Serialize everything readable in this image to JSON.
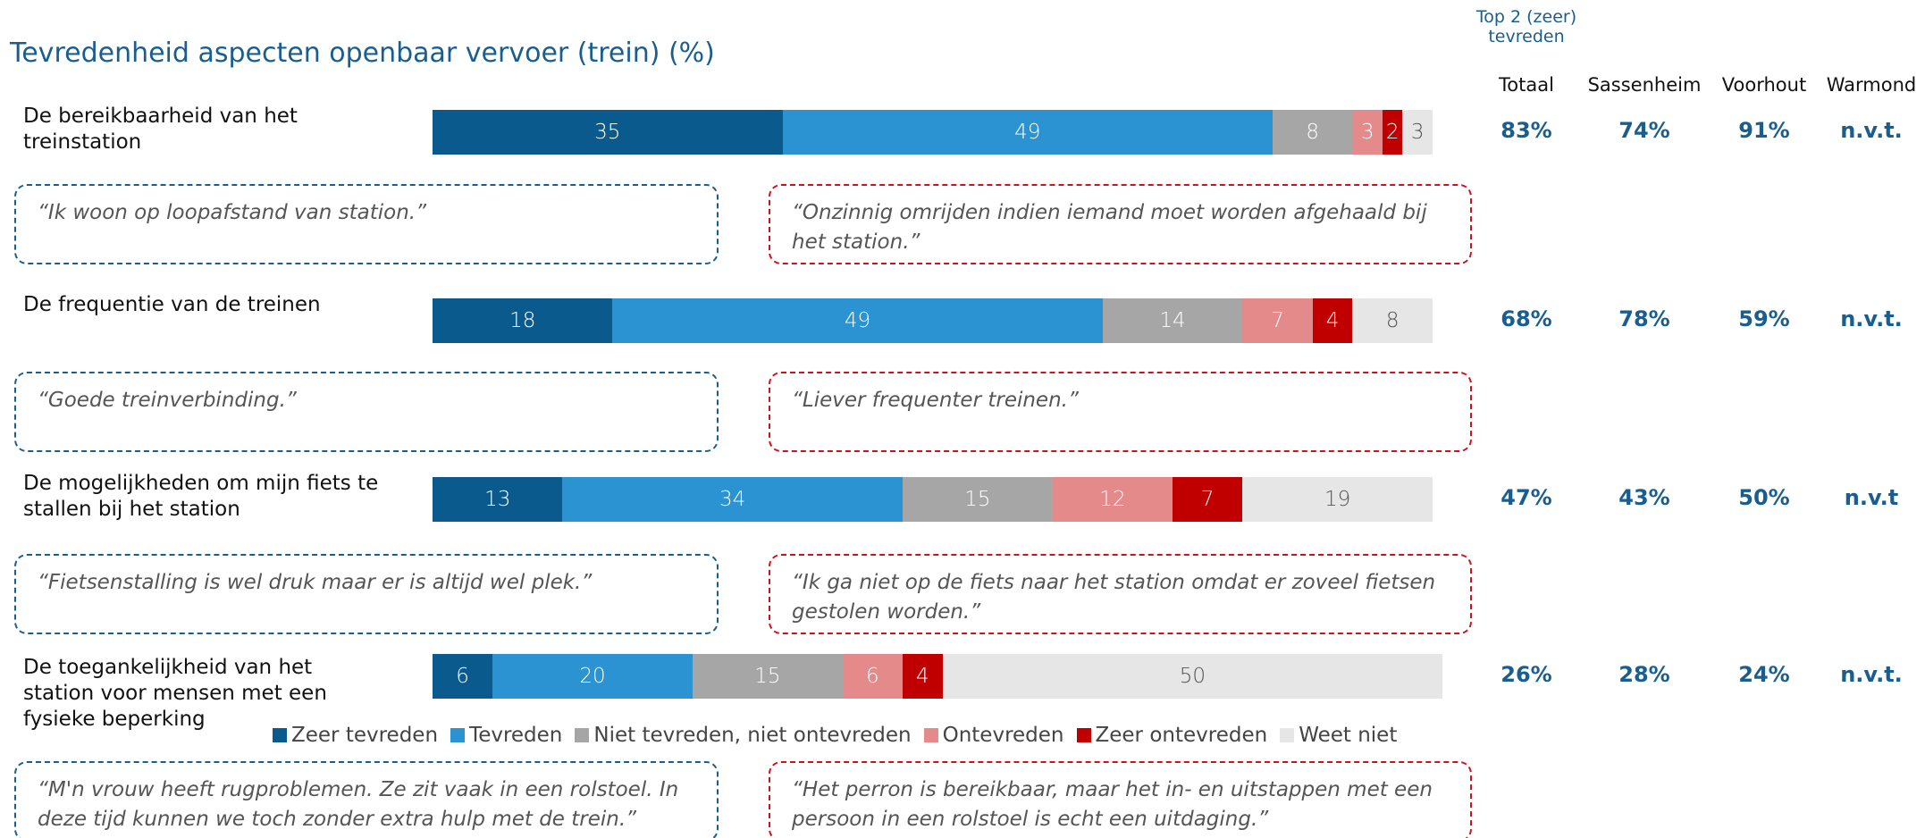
{
  "chart_data": {
    "type": "bar",
    "stacked": true,
    "orientation": "horizontal",
    "title": "Tevredenheid aspecten openbaar vervoer (trein) (%)",
    "categories": [
      "De bereikbaarheid van het treinstation",
      "De frequentie van de treinen",
      "De mogelijkheden om mijn fiets te stallen bij het station",
      "De toegankelijkheid van het station voor mensen met een fysieke beperking"
    ],
    "series": [
      {
        "name": "Zeer tevreden",
        "color": "#0b5a8e",
        "values": [
          35,
          18,
          13,
          6
        ]
      },
      {
        "name": "Tevreden",
        "color": "#2b93d1",
        "values": [
          49,
          49,
          34,
          20
        ]
      },
      {
        "name": "Niet tevreden, niet ontevreden",
        "color": "#a6a6a6",
        "values": [
          8,
          14,
          15,
          15
        ]
      },
      {
        "name": "Ontevreden",
        "color": "#e58a8a",
        "values": [
          3,
          7,
          12,
          6
        ]
      },
      {
        "name": "Zeer ontevreden",
        "color": "#c00000",
        "values": [
          2,
          4,
          7,
          4
        ]
      },
      {
        "name": "Weet niet",
        "color": "#e6e6e6",
        "values": [
          3,
          8,
          19,
          50
        ]
      }
    ]
  },
  "table": {
    "title": "Top 2 (zeer) tevreden",
    "columns": [
      "Totaal",
      "Sassenheim",
      "Voorhout",
      "Warmond"
    ],
    "rows": [
      [
        "83%",
        "74%",
        "91%",
        "n.v.t."
      ],
      [
        "68%",
        "78%",
        "59%",
        "n.v.t."
      ],
      [
        "47%",
        "43%",
        "50%",
        "n.v.t"
      ],
      [
        "26%",
        "28%",
        "24%",
        "n.v.t."
      ]
    ]
  },
  "quotes": [
    {
      "positive": "“Ik woon op loopafstand van station.”",
      "negative": "“Onzinnig omrijden indien iemand moet worden afgehaald bij het station.”"
    },
    {
      "positive": "“Goede treinverbinding.”",
      "negative": "“Liever frequenter treinen.”"
    },
    {
      "positive": "“Fietsenstalling is wel druk maar er is altijd wel plek.”",
      "negative": "“Ik ga niet op de fiets naar het station omdat er zoveel fietsen gestolen worden.”"
    },
    {
      "positive": "“M'n vrouw heeft rugproblemen. Ze zit vaak in een rolstoel. In deze tijd kunnen we toch zonder extra hulp met de trein.”",
      "negative": "“Het perron is bereikbaar, maar het in- en uitstappen met een persoon in een rolstoel is echt een uitdaging.”"
    }
  ]
}
